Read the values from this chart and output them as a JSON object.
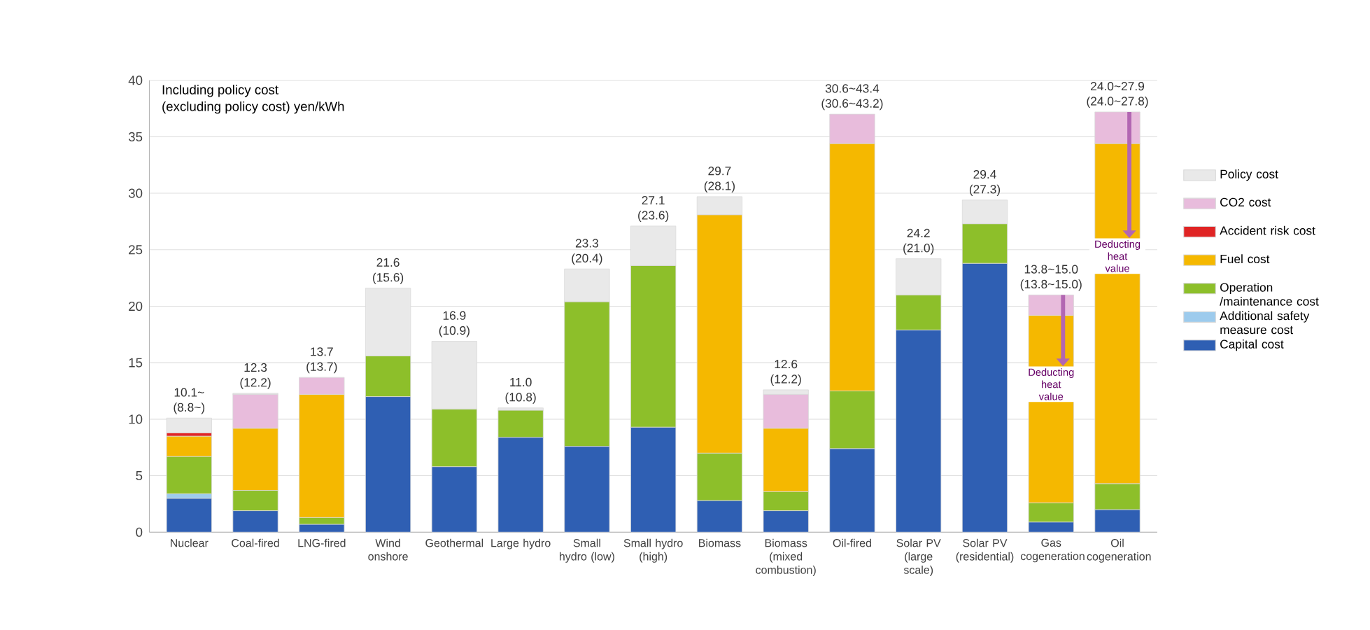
{
  "chart_data": {
    "type": "bar",
    "stacked": true,
    "ylabel": "Including policy cost",
    "categories": [
      "Nuclear",
      "Coal-fired",
      "LNG-fired",
      "Wind onshore",
      "Geothermal",
      "Large hydro",
      "Small hydro (low)",
      "Small hydro (high)",
      "Biomass",
      "Biomass (mixed combustion)",
      "Oil-fired",
      "Solar PV (large scale)",
      "Solar PV (residential)",
      "Gas cogeneration",
      "Oil cogeneration"
    ],
    "series": [
      {
        "name": "Capital cost",
        "color": "#2f5fb3",
        "values": [
          3.0,
          1.9,
          0.7,
          12.0,
          5.8,
          8.4,
          7.6,
          9.3,
          2.8,
          1.9,
          7.4,
          17.9,
          23.8,
          0.9,
          2.0
        ]
      },
      {
        "name": "Additional safety measure cost",
        "color": "#9dcbed",
        "values": [
          0.4,
          null,
          null,
          null,
          null,
          null,
          null,
          null,
          null,
          null,
          null,
          null,
          null,
          null,
          null
        ]
      },
      {
        "name": "Operation /maintenance cost",
        "color": "#8dbf2a",
        "values": [
          3.3,
          1.8,
          0.6,
          3.6,
          5.1,
          2.4,
          12.8,
          14.3,
          4.2,
          1.7,
          5.1,
          3.1,
          3.5,
          1.7,
          2.3
        ]
      },
      {
        "name": "Fuel cost",
        "color": "#f5b800",
        "values": [
          1.8,
          5.5,
          10.9,
          null,
          null,
          null,
          null,
          null,
          21.1,
          5.6,
          21.9,
          null,
          null,
          16.6,
          30.1
        ]
      },
      {
        "name": "Accident risk cost",
        "color": "#e02424",
        "values": [
          0.3,
          null,
          null,
          null,
          null,
          null,
          null,
          null,
          null,
          null,
          null,
          null,
          null,
          null,
          null
        ]
      },
      {
        "name": "CO2 cost",
        "color": "#e8bcdc",
        "values": [
          null,
          3.0,
          1.5,
          null,
          null,
          null,
          null,
          null,
          null,
          3.0,
          2.6,
          null,
          null,
          1.8,
          2.8
        ]
      },
      {
        "name": "Policy cost",
        "color": "#e9e9e9",
        "values": [
          1.3,
          0.1,
          null,
          6.0,
          6.0,
          0.2,
          2.9,
          3.5,
          1.6,
          0.4,
          null,
          3.2,
          2.1,
          null,
          null
        ]
      }
    ],
    "totals": [
      "10.1~ (8.8~)",
      "12.3 (12.2)",
      "13.7 (13.7)",
      "21.6 (15.6)",
      "16.9 (10.9)",
      "11.0 (10.8)",
      "23.3 (20.4)",
      "27.1 (23.6)",
      "29.7 (28.1)",
      "12.6 (12.2)",
      "30.6~43.4 (30.6~43.2)",
      "24.2 (21.0)",
      "29.4 (27.3)",
      "13.8~15.0 (13.8~15.0)",
      "24.0~27.9 (24.0~27.8)"
    ],
    "annotations": [
      "(excluding policy cost)  yen/kWh",
      {
        "text": "Deducting heat value",
        "x": "Gas cogeneration",
        "y": 21.0
      },
      {
        "text": "Deducting heat value",
        "x": "Oil cogeneration",
        "y": 37.2
      }
    ],
    "ylim": [
      0,
      40
    ],
    "yticks": [
      0,
      5,
      10,
      15,
      20,
      25,
      30,
      35,
      40
    ],
    "grid": "y",
    "legend": "right"
  }
}
